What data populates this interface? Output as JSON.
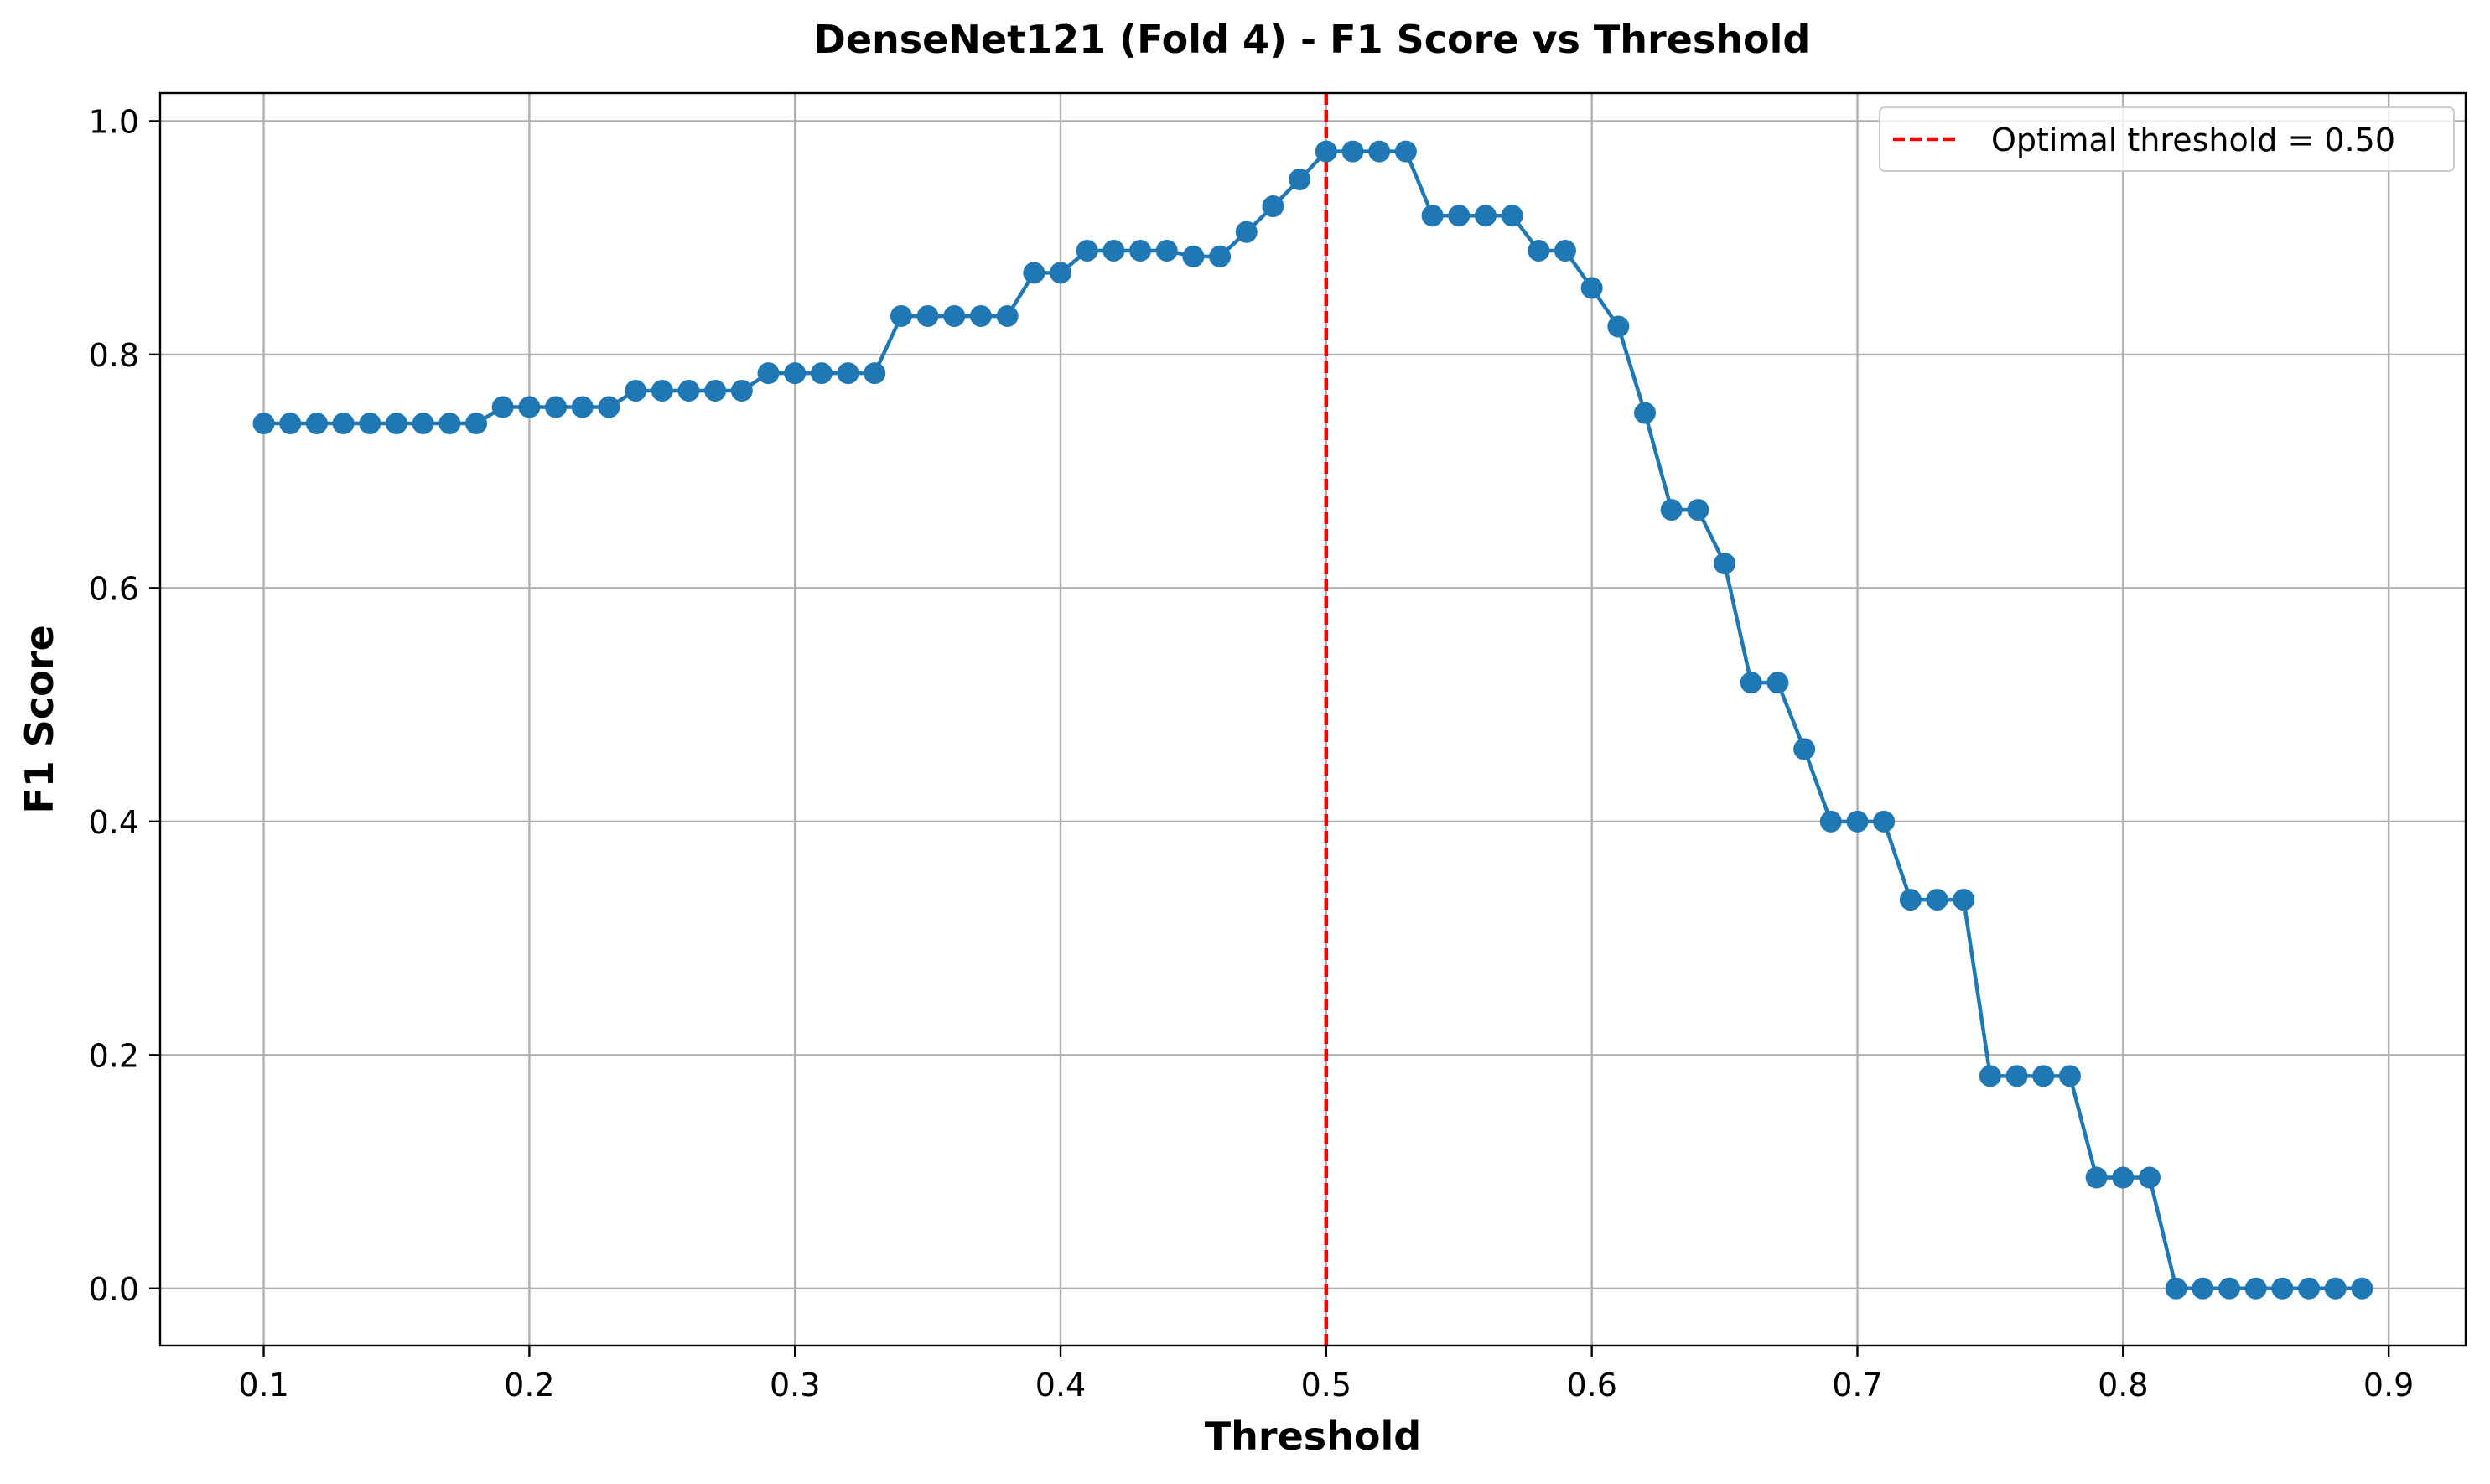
{
  "chart_data": {
    "type": "line",
    "title": "DenseNet121 (Fold 4) - F1 Score vs Threshold",
    "xlabel": "Threshold",
    "ylabel": "F1 Score",
    "xlim": [
      0.061,
      0.929
    ],
    "ylim": [
      -0.049,
      1.024
    ],
    "x_ticks": [
      0.1,
      0.2,
      0.3,
      0.4,
      0.5,
      0.6,
      0.7,
      0.8,
      0.9
    ],
    "x_tick_labels": [
      "0.1",
      "0.2",
      "0.3",
      "0.4",
      "0.5",
      "0.6",
      "0.7",
      "0.8",
      "0.9"
    ],
    "y_ticks": [
      0.0,
      0.2,
      0.4,
      0.6,
      0.8,
      1.0
    ],
    "y_tick_labels": [
      "0.0",
      "0.2",
      "0.4",
      "0.6",
      "0.8",
      "1.0"
    ],
    "grid": true,
    "legend_position": "top-right",
    "series": [
      {
        "color": "#1f77b4",
        "marker": "circle",
        "x": [
          0.1,
          0.11,
          0.12,
          0.13,
          0.14,
          0.15,
          0.16,
          0.17,
          0.18,
          0.19,
          0.2,
          0.21,
          0.22,
          0.23,
          0.24,
          0.25,
          0.26,
          0.27,
          0.28,
          0.29,
          0.3,
          0.31,
          0.32,
          0.33,
          0.34,
          0.35,
          0.36,
          0.37,
          0.38,
          0.39,
          0.4,
          0.41,
          0.42,
          0.43,
          0.44,
          0.45,
          0.46,
          0.47,
          0.48,
          0.49,
          0.5,
          0.51,
          0.52,
          0.53,
          0.54,
          0.55,
          0.56,
          0.57,
          0.58,
          0.59,
          0.6,
          0.61,
          0.62,
          0.63,
          0.64,
          0.65,
          0.66,
          0.67,
          0.68,
          0.69,
          0.7,
          0.71,
          0.72,
          0.73,
          0.74,
          0.75,
          0.76,
          0.77,
          0.78,
          0.79,
          0.8,
          0.81,
          0.82,
          0.83,
          0.84,
          0.85,
          0.86,
          0.87,
          0.88,
          0.89
        ],
        "y": [
          0.741,
          0.741,
          0.741,
          0.741,
          0.741,
          0.741,
          0.741,
          0.741,
          0.741,
          0.755,
          0.755,
          0.755,
          0.755,
          0.755,
          0.769,
          0.769,
          0.769,
          0.769,
          0.769,
          0.784,
          0.784,
          0.784,
          0.784,
          0.784,
          0.833,
          0.833,
          0.833,
          0.833,
          0.833,
          0.87,
          0.87,
          0.889,
          0.889,
          0.889,
          0.889,
          0.884,
          0.884,
          0.905,
          0.927,
          0.95,
          0.974,
          0.974,
          0.974,
          0.974,
          0.919,
          0.919,
          0.919,
          0.919,
          0.889,
          0.889,
          0.857,
          0.824,
          0.75,
          0.667,
          0.667,
          0.621,
          0.519,
          0.519,
          0.462,
          0.4,
          0.4,
          0.4,
          0.333,
          0.333,
          0.333,
          0.182,
          0.182,
          0.182,
          0.182,
          0.095,
          0.095,
          0.095,
          0.0,
          0.0,
          0.0,
          0.0,
          0.0,
          0.0,
          0.0,
          0.0
        ]
      }
    ],
    "reference_line": {
      "orientation": "vertical",
      "x": 0.5,
      "color": "#ff0000",
      "style": "dashed",
      "label": "Optimal threshold = 0.50"
    }
  }
}
